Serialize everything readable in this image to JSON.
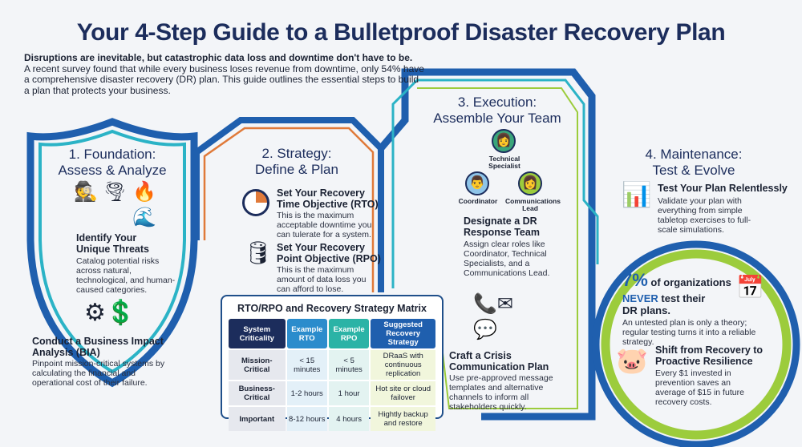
{
  "title": "Your 4-Step Guide to a Bulletproof Disaster Recovery Plan",
  "intro": {
    "lead": "Disruptions are inevitable, but catastrophic data loss and downtime don't have to be.",
    "body": "A recent survey found that while every business loses revenue from downtime, only 54% have a comprehensive disaster recovery (DR) plan. This guide outlines the essential steps to build a plan that protects your business."
  },
  "colors": {
    "navy": "#1c2d5c",
    "blue": "#1f5fae",
    "teal": "#2bb3c6",
    "green": "#9ccc3c",
    "orange": "#e07a3a"
  },
  "step1": {
    "title1": "1. Foundation:",
    "title2": "Assess & Analyze",
    "threats_heading": "Identify Your Unique Threats",
    "threats_body": "Catalog potential risks across natural, technological, and human-caused categories.",
    "bia_heading": "Conduct a Business Impact Analysis (BIA)",
    "bia_body": "Pinpoint mission-critical systems by calculating the financial and operational cost of their failure.",
    "icons": [
      "hacker-icon",
      "tornado-icon",
      "fire-icon",
      "flood-icon",
      "gears-dollar-magnifier-icon"
    ]
  },
  "step2": {
    "title1": "2. Strategy:",
    "title2": "Define & Plan",
    "rto_heading": "Set Your Recovery Time Objective (RTO)",
    "rto_body": "This is the maximum acceptable downtime you can tulerate for a system.",
    "rpo_heading": "Set Your Recovery Point Objective (RPO)",
    "rpo_body": "This is the maximum amount of data loss you can afford to lose."
  },
  "matrix": {
    "title": "RTO/RPO and Recovery Strategy Matrix",
    "headers": [
      "System Criticality",
      "Example RTO",
      "Example RPO",
      "Suggested Recovery Strategy"
    ],
    "rows": [
      [
        "Mission-Critical",
        "< 15 minutes",
        "< 5 minutes",
        "DRaaS with continuous replication"
      ],
      [
        "Business-Critical",
        "1-2 hours",
        "1 hour",
        "Hot site or cloud failover"
      ],
      [
        "Important",
        "8-12 hours",
        "4 hours",
        "Hightly backup and restore"
      ]
    ]
  },
  "step3": {
    "title1": "3. Execution:",
    "title2": "Assemble Your Team",
    "roles": [
      "Technical Specialist",
      "Coordinator",
      "Communications Lead"
    ],
    "team_heading": "Designate a DR Response Team",
    "team_body": "Assign clear roles like Coordinator, Technical Specialists, and a Communications Lead.",
    "comm_heading": "Craft a Crisis Communication Plan",
    "comm_body": "Use pre-approved message templates and alternative channels to inform all stakeholders quickly."
  },
  "step4": {
    "title1": "4. Maintenance:",
    "title2": "Test & Evolve",
    "test_heading": "Test Your Plan Relentlessly",
    "test_body": "Validate your plan with everything from simple tabletop exercises to full-scale simulations.",
    "stat_pct": "7%",
    "stat_rest1": "of organizations",
    "stat_never": "NEVER",
    "stat_rest2": "test their",
    "stat_rest3": "DR plans.",
    "stat_body": "An untested plan is only a theory; regular testing turns it into a reliable strategy.",
    "shift_heading": "Shift from Recovery to Proactive Resilience",
    "shift_body": "Every $1 invested in prevention saves an average of $15 in future recovery costs."
  }
}
